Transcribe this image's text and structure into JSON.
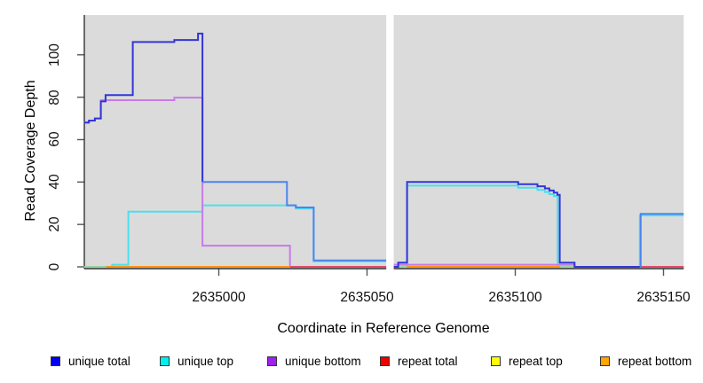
{
  "chart_data": {
    "type": "line",
    "style": "step-after",
    "xlabel": "Coordinate in Reference Genome",
    "ylabel": "Read Coverage Depth",
    "plot_background": "#DBDBDB",
    "page_background": "#FFFFFF",
    "x_ticks": [
      2635000,
      2635050,
      2635100,
      2635150
    ],
    "y_ticks": [
      0,
      20,
      40,
      60,
      80,
      100
    ],
    "xlim": [
      2634954.5,
      2635157
    ],
    "ylim": [
      -4,
      119
    ],
    "grid": false,
    "gap_region": {
      "x_start": 2635056.5,
      "x_end": 2635059,
      "color": "#FFFFFF"
    },
    "legend_position": "bottom",
    "legend": [
      {
        "label": "unique total",
        "color": "#0000EE"
      },
      {
        "label": "unique top",
        "color": "#00EEEE"
      },
      {
        "label": "unique bottom",
        "color": "#A020F0"
      },
      {
        "label": "repeat total",
        "color": "#EE0000"
      },
      {
        "label": "repeat top",
        "color": "#FFFF00"
      },
      {
        "label": "repeat bottom",
        "color": "#FFA500"
      }
    ],
    "series": [
      {
        "name": "unique top",
        "line_color": "#49E0EE",
        "segments": [
          {
            "points": [
              [
                2634954.5,
                0
              ],
              [
                2634964,
                1
              ],
              [
                2634969.5,
                26
              ],
              [
                2634994.5,
                29
              ],
              [
                2635026,
                27.5
              ],
              [
                2635032,
                2.6
              ]
            ],
            "xend": 2635056.5
          },
          {
            "points": [
              [
                2635059,
                0
              ],
              [
                2635063.5,
                38.3
              ],
              [
                2635101,
                37.3
              ],
              [
                2635107.5,
                36.3
              ],
              [
                2635110,
                35.3
              ],
              [
                2635111.5,
                34.3
              ],
              [
                2635113,
                33.3
              ],
              [
                2635114.3,
                0
              ],
              [
                2635142,
                24.3
              ]
            ],
            "xend": 2635156.8
          }
        ]
      },
      {
        "name": "unique bottom",
        "line_color": "#C77BE8",
        "segments": [
          {
            "points": [
              [
                2634954.5,
                68
              ],
              [
                2634956.2,
                69
              ],
              [
                2634958.2,
                70
              ],
              [
                2634960.2,
                78.6
              ],
              [
                2634985,
                79.8
              ],
              [
                2634994.5,
                10
              ],
              [
                2635024,
                0
              ]
            ],
            "xend": 2635056.5
          },
          {
            "points": [
              [
                2635059,
                1
              ],
              [
                2635120,
                0
              ]
            ],
            "xend": 2635156.8
          }
        ]
      },
      {
        "name": "repeat total",
        "line_color": "#E14A6B",
        "segments": [
          {
            "points": [
              [
                2635024,
                0
              ]
            ],
            "xend": 2635056.5
          },
          {
            "points": [
              [
                2635059,
                0
              ]
            ],
            "xend": 2635120
          },
          {
            "points": [
              [
                2635142,
                0
              ]
            ],
            "xend": 2635156.8
          }
        ]
      },
      {
        "name": "repeat top",
        "line_color": "#97D4A2",
        "segments": [
          {
            "points": [
              [
                2634954.5,
                0
              ]
            ],
            "xend": 2634962
          },
          {
            "points": [
              [
                2635059,
                0
              ]
            ],
            "xend": 2635063.5
          },
          {
            "points": [
              [
                2635115,
                0
              ]
            ],
            "xend": 2635120
          }
        ]
      },
      {
        "name": "repeat bottom",
        "line_color": "#FF9414",
        "segments": [
          {
            "points": [
              [
                2634962,
                0
              ]
            ],
            "xend": 2635024
          },
          {
            "points": [
              [
                2635063.5,
                0
              ]
            ],
            "xend": 2635115
          }
        ]
      },
      {
        "name": "unique total",
        "strands": [
          {
            "color": "#3335D8",
            "segments": [
              {
                "points": [
                  [
                    2634954.5,
                    68
                  ],
                  [
                    2634956.2,
                    69
                  ],
                  [
                    2634958.2,
                    70
                  ],
                  [
                    2634960.2,
                    78
                  ],
                  [
                    2634961.8,
                    81
                  ],
                  [
                    2634971,
                    106
                  ],
                  [
                    2634985,
                    107
                  ],
                  [
                    2634993,
                    110
                  ],
                  [
                    2634994.5,
                    40
                  ]
                ],
                "xend": 2634994.5
              },
              {
                "points": [
                  [
                    2635059,
                    0
                  ],
                  [
                    2635060.5,
                    2
                  ],
                  [
                    2635063.5,
                    40
                  ],
                  [
                    2635101,
                    39
                  ],
                  [
                    2635107.5,
                    38
                  ],
                  [
                    2635110,
                    37
                  ],
                  [
                    2635111.5,
                    36
                  ],
                  [
                    2635113,
                    35
                  ],
                  [
                    2635114.2,
                    34
                  ],
                  [
                    2635115,
                    2
                  ],
                  [
                    2635120,
                    0
                  ]
                ],
                "xend": 2635142
              }
            ]
          },
          {
            "color": "#4B84EE",
            "segments": [
              {
                "points": [
                  [
                    2634994.5,
                    40
                  ],
                  [
                    2635023,
                    29
                  ],
                  [
                    2635026,
                    28
                  ],
                  [
                    2635032,
                    3
                  ]
                ],
                "xend": 2635056.5
              },
              {
                "points": [
                  [
                    2635142,
                    0
                  ],
                  [
                    2635142.3,
                    25
                  ]
                ],
                "xend": 2635156.8
              }
            ]
          }
        ]
      }
    ]
  }
}
